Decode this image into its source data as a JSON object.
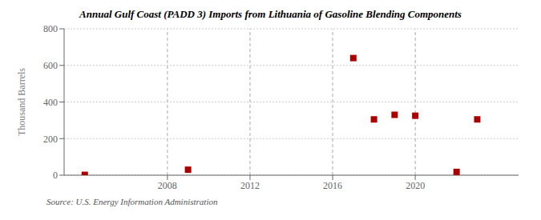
{
  "chart_data": {
    "type": "scatter",
    "title": "Annual Gulf Coast (PADD 3) Imports from Lithuania of Gasoline Blending Components",
    "ylabel": "Thousand Barrels",
    "annotations": [
      "Source: U.S. Energy Information Administration"
    ],
    "x": [
      2004,
      2009,
      2017,
      2018,
      2019,
      2020,
      2022,
      2023
    ],
    "values": [
      2,
      30,
      640,
      305,
      330,
      325,
      18,
      305
    ],
    "color": "#aa0000",
    "marker": "square",
    "xlim": [
      2003,
      2025
    ],
    "ylim": [
      0,
      800
    ],
    "xticks": [
      2008,
      2012,
      2016,
      2020
    ],
    "yticks": [
      0,
      200,
      400,
      600,
      800
    ],
    "grid": true
  }
}
